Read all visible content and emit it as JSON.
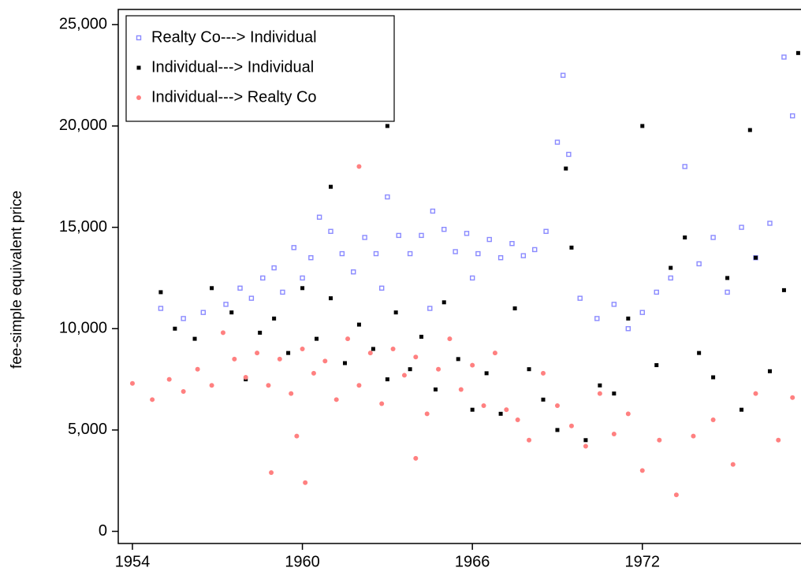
{
  "chart_data": {
    "type": "scatter",
    "ylabel": "fee-simple equivalent price",
    "xlim": [
      1953.5,
      1977.6
    ],
    "ylim": [
      -600,
      25750
    ],
    "xticks": [
      1954,
      1960,
      1966,
      1972
    ],
    "yticks": [
      {
        "value": 0,
        "label": "0"
      },
      {
        "value": 5000,
        "label": "5,000"
      },
      {
        "value": 10000,
        "label": "10,000"
      },
      {
        "value": 15000,
        "label": "15,000"
      },
      {
        "value": 20000,
        "label": "20,000"
      },
      {
        "value": 25000,
        "label": "25,000"
      }
    ],
    "legend": "upper left",
    "series": [
      {
        "name": "Realty Co---> Individual",
        "color": "#8a8aff",
        "marker": "hollow-square",
        "x": [
          1955.0,
          1955.8,
          1956.5,
          1957.3,
          1957.8,
          1958.2,
          1958.6,
          1959.0,
          1959.3,
          1959.7,
          1960.0,
          1960.3,
          1960.6,
          1961.0,
          1961.4,
          1961.8,
          1962.2,
          1962.6,
          1963.0,
          1963.4,
          1963.8,
          1964.2,
          1964.6,
          1965.0,
          1965.4,
          1965.8,
          1966.2,
          1966.6,
          1967.0,
          1967.4,
          1967.8,
          1968.2,
          1968.6,
          1969.0,
          1969.4,
          1969.8,
          1970.4,
          1971.0,
          1971.5,
          1972.0,
          1972.5,
          1973.0,
          1973.5,
          1974.0,
          1974.5,
          1975.0,
          1975.5,
          1976.0,
          1976.5,
          1977.0,
          1977.3,
          1969.2,
          1962.8,
          1966.0,
          1964.5
        ],
        "values": [
          11000,
          10500,
          10800,
          11200,
          12000,
          11500,
          12500,
          13000,
          11800,
          14000,
          12500,
          13500,
          15500,
          14800,
          13700,
          12800,
          14500,
          13700,
          16500,
          14600,
          13700,
          14600,
          15800,
          14900,
          13800,
          14700,
          13700,
          14400,
          13500,
          14200,
          13600,
          13900,
          14800,
          19200,
          18600,
          11500,
          10500,
          11200,
          10000,
          10800,
          11800,
          12500,
          18000,
          13200,
          14500,
          11800,
          15000,
          13500,
          15200,
          23400,
          20500,
          22500,
          12000,
          12500,
          11000
        ]
      },
      {
        "name": "Individual---> Individual",
        "color": "#000000",
        "marker": "square",
        "x": [
          1955.0,
          1955.5,
          1956.2,
          1956.8,
          1957.5,
          1958.0,
          1958.5,
          1959.0,
          1959.5,
          1960.0,
          1960.5,
          1961.0,
          1961.5,
          1962.0,
          1962.5,
          1963.0,
          1963.3,
          1963.8,
          1964.2,
          1964.7,
          1965.0,
          1965.5,
          1966.0,
          1966.5,
          1967.0,
          1967.5,
          1968.0,
          1968.5,
          1969.0,
          1969.5,
          1970.0,
          1970.5,
          1971.0,
          1971.5,
          1972.0,
          1972.5,
          1973.0,
          1973.5,
          1974.0,
          1974.5,
          1975.0,
          1975.5,
          1976.0,
          1976.5,
          1977.0,
          1977.5,
          1963.0,
          1961.0,
          1969.3,
          1975.8
        ],
        "values": [
          11800,
          10000,
          9500,
          12000,
          10800,
          7500,
          9800,
          10500,
          8800,
          12000,
          9500,
          11500,
          8300,
          10200,
          9000,
          7500,
          10800,
          8000,
          9600,
          7000,
          11300,
          8500,
          6000,
          7800,
          5800,
          11000,
          8000,
          6500,
          5000,
          14000,
          4500,
          7200,
          6800,
          10500,
          20000,
          8200,
          13000,
          14500,
          8800,
          7600,
          12500,
          6000,
          13500,
          7900,
          11900,
          23600,
          20000,
          17000,
          17900,
          19800
        ]
      },
      {
        "name": "Individual---> Realty Co",
        "color": "#ff8080",
        "marker": "circle",
        "x": [
          1954.0,
          1954.7,
          1955.3,
          1955.8,
          1956.3,
          1956.8,
          1957.2,
          1957.6,
          1958.0,
          1958.4,
          1958.8,
          1959.2,
          1959.6,
          1960.0,
          1960.4,
          1960.8,
          1961.2,
          1961.6,
          1962.0,
          1962.4,
          1962.8,
          1963.2,
          1963.6,
          1964.0,
          1964.4,
          1964.8,
          1965.2,
          1965.6,
          1966.0,
          1966.4,
          1966.8,
          1967.2,
          1967.6,
          1968.0,
          1968.5,
          1969.0,
          1969.5,
          1970.0,
          1970.5,
          1971.0,
          1971.5,
          1972.0,
          1972.6,
          1973.2,
          1973.8,
          1974.5,
          1975.2,
          1976.0,
          1976.8,
          1977.3,
          1958.9,
          1960.1,
          1964.0,
          1962.0,
          1959.8
        ],
        "values": [
          7300,
          6500,
          7500,
          6900,
          8000,
          7200,
          9800,
          8500,
          7600,
          8800,
          7200,
          8500,
          6800,
          9000,
          7800,
          8400,
          6500,
          9500,
          7200,
          8800,
          6300,
          9000,
          7700,
          8600,
          5800,
          8000,
          9500,
          7000,
          8200,
          6200,
          8800,
          6000,
          5500,
          4500,
          7800,
          6200,
          5200,
          4200,
          6800,
          4800,
          5800,
          3000,
          4500,
          1800,
          4700,
          5500,
          3300,
          6800,
          4500,
          6600,
          2900,
          2400,
          3600,
          18000,
          4700
        ]
      }
    ]
  }
}
